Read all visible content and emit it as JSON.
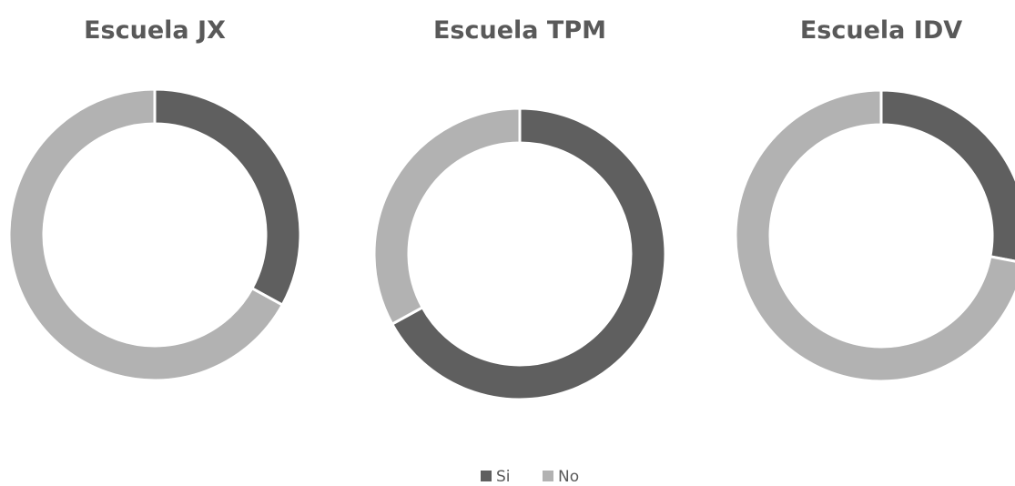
{
  "chart_data": [
    {
      "type": "donut",
      "title": "Escuela JX",
      "categories": [
        "Si",
        "No"
      ],
      "values": [
        33,
        67
      ],
      "colors": [
        "#5f5f5f",
        "#b2b2b2"
      ]
    },
    {
      "type": "donut",
      "title": "Escuela TPM",
      "categories": [
        "Si",
        "No"
      ],
      "values": [
        67,
        33
      ],
      "colors": [
        "#5f5f5f",
        "#b2b2b2"
      ]
    },
    {
      "type": "donut",
      "title": "Escuela IDV",
      "categories": [
        "Si",
        "No"
      ],
      "values": [
        28,
        72
      ],
      "colors": [
        "#5f5f5f",
        "#b2b2b2"
      ]
    }
  ]
}
